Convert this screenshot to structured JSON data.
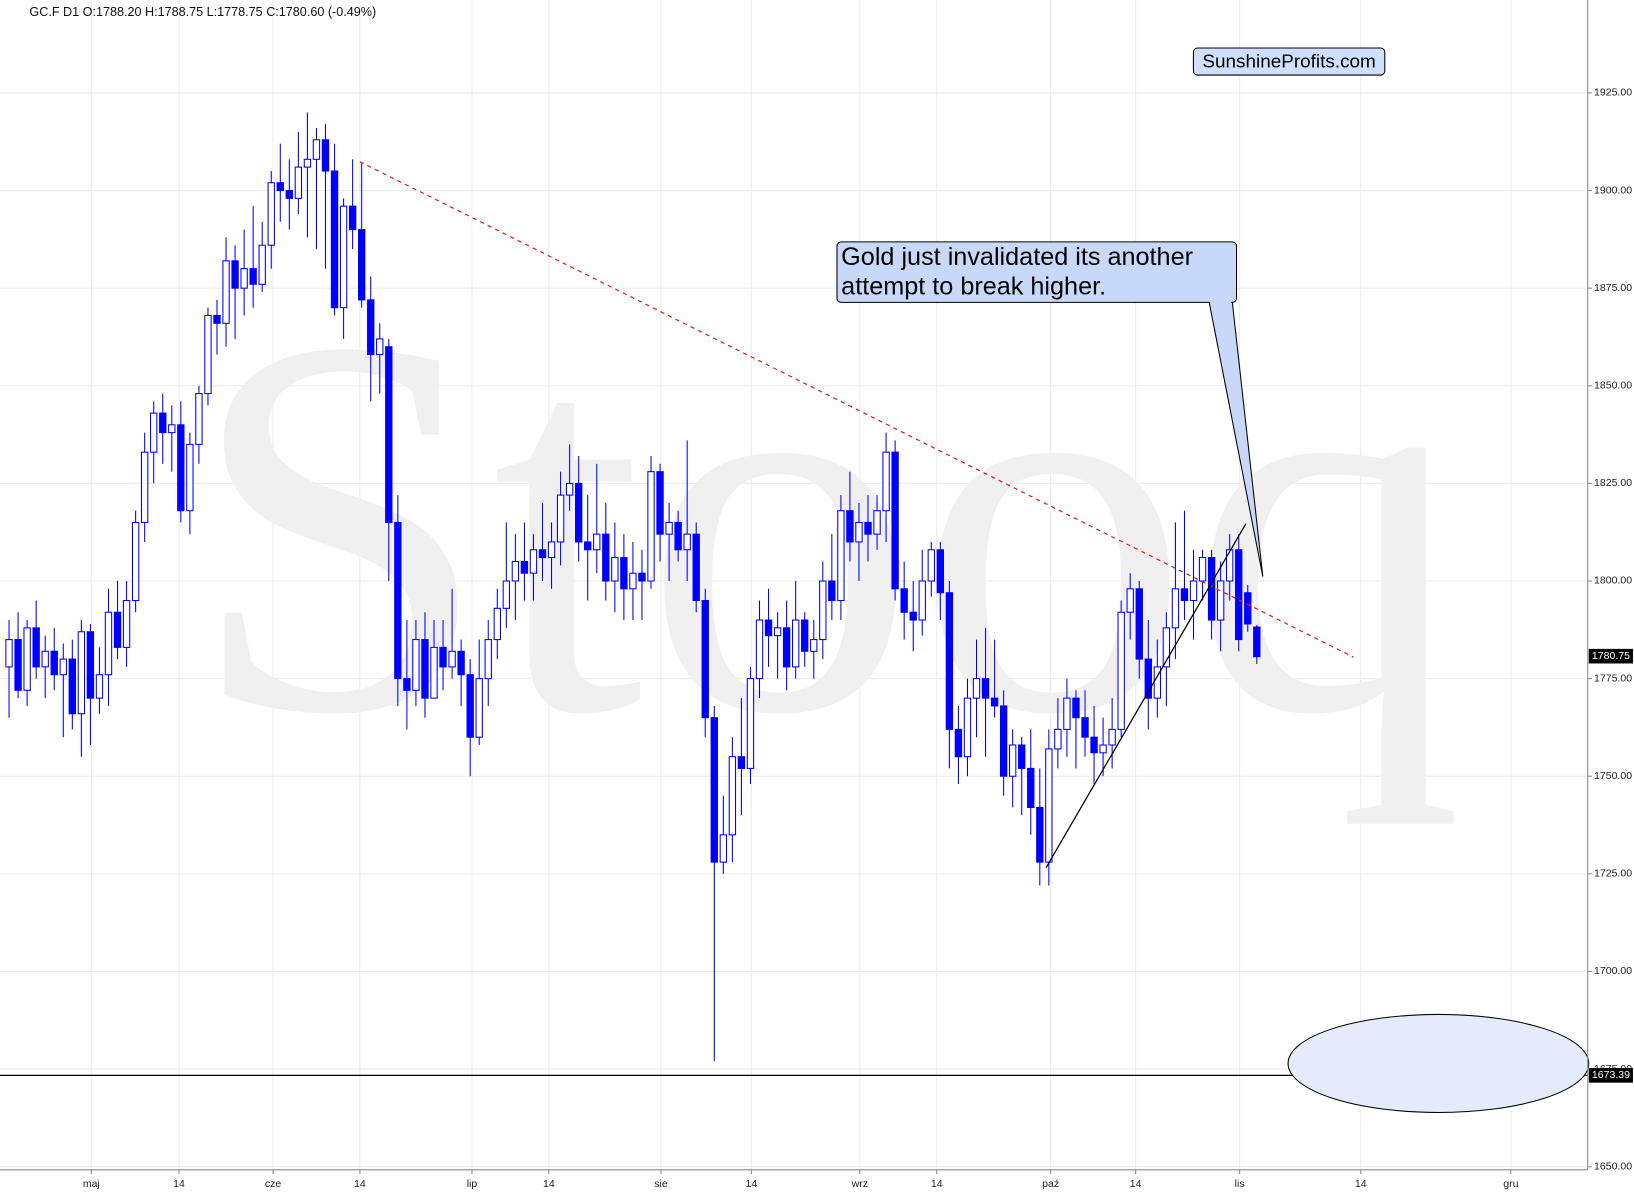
{
  "chart_data": {
    "type": "candlestick",
    "header": "GC.F  D1  O:1788.20  H:1788.75  L:1778.75  C:1780.60  (-0.49%)",
    "watermark": "Stooq",
    "brand": "SunshineProfits.com",
    "annotation": [
      "Gold just invalidated its another",
      "attempt to break higher."
    ],
    "color": "#0000ff",
    "grid": true,
    "ylim": [
      1649.2,
      1948.8
    ],
    "yticks": [
      {
        "value": 1650,
        "label": "1650.00"
      },
      {
        "value": 1675,
        "label": "1675.00"
      },
      {
        "value": 1700,
        "label": "1700.00"
      },
      {
        "value": 1725,
        "label": "1725.00"
      },
      {
        "value": 1750,
        "label": "1750.00"
      },
      {
        "value": 1775,
        "label": "1775.00"
      },
      {
        "value": 1800,
        "label": "1800.00"
      },
      {
        "value": 1825,
        "label": "1825.00"
      },
      {
        "value": 1850,
        "label": "1850.00"
      },
      {
        "value": 1875,
        "label": "1875.00"
      },
      {
        "value": 1900,
        "label": "1900.00"
      },
      {
        "value": 1925,
        "label": "1925.00"
      }
    ],
    "xlim": [
      -1,
      174.6
    ],
    "xticks": [
      {
        "value": 9.1,
        "label": "maj"
      },
      {
        "value": 18.8,
        "label": "14"
      },
      {
        "value": 29.2,
        "label": "cze"
      },
      {
        "value": 38.8,
        "label": "14"
      },
      {
        "value": 51.2,
        "label": "lip"
      },
      {
        "value": 59.7,
        "label": "14"
      },
      {
        "value": 72.1,
        "label": "sie"
      },
      {
        "value": 82.1,
        "label": "14"
      },
      {
        "value": 94.1,
        "label": "wrz"
      },
      {
        "value": 102.6,
        "label": "14"
      },
      {
        "value": 115.2,
        "label": "paź"
      },
      {
        "value": 124.6,
        "label": "14"
      },
      {
        "value": 136.1,
        "label": "lis"
      },
      {
        "value": 149.5,
        "label": "14"
      },
      {
        "value": 166.1,
        "label": "gru"
      }
    ],
    "last_price": {
      "value": 1780.75,
      "label": "1780.75"
    },
    "level": {
      "value": 1673.39,
      "label": "1673.39"
    },
    "trendlines": [
      {
        "color": "#e02020",
        "dashed": true,
        "x": [
          38.8,
          148.7
        ],
        "y": [
          1907.4,
          1780.5
        ]
      },
      {
        "color": "#000000",
        "dashed": false,
        "x": [
          114.7,
          136.8
        ],
        "y": [
          1726.6,
          1814.7
        ]
      }
    ],
    "ohlc": [
      [
        1778,
        1790,
        1765,
        1785
      ],
      [
        1785,
        1792,
        1770,
        1772
      ],
      [
        1772,
        1790,
        1768,
        1788
      ],
      [
        1788,
        1795,
        1775,
        1778
      ],
      [
        1778,
        1786,
        1770,
        1782
      ],
      [
        1782,
        1788,
        1772,
        1776
      ],
      [
        1776,
        1784,
        1760,
        1780
      ],
      [
        1780,
        1785,
        1762,
        1766
      ],
      [
        1766,
        1790,
        1755,
        1787
      ],
      [
        1787,
        1789,
        1758,
        1770
      ],
      [
        1770,
        1783,
        1766,
        1776
      ],
      [
        1776,
        1798,
        1768,
        1792
      ],
      [
        1792,
        1800,
        1780,
        1783
      ],
      [
        1783,
        1800,
        1778,
        1795
      ],
      [
        1795,
        1818,
        1792,
        1815
      ],
      [
        1815,
        1838,
        1810,
        1833
      ],
      [
        1833,
        1846,
        1825,
        1843
      ],
      [
        1843,
        1848,
        1830,
        1838
      ],
      [
        1838,
        1845,
        1828,
        1840
      ],
      [
        1840,
        1846,
        1815,
        1818
      ],
      [
        1818,
        1838,
        1812,
        1835
      ],
      [
        1835,
        1850,
        1830,
        1848
      ],
      [
        1848,
        1870,
        1845,
        1868
      ],
      [
        1868,
        1872,
        1858,
        1866
      ],
      [
        1866,
        1888,
        1860,
        1882
      ],
      [
        1882,
        1886,
        1862,
        1875
      ],
      [
        1875,
        1890,
        1868,
        1880
      ],
      [
        1880,
        1896,
        1870,
        1876
      ],
      [
        1876,
        1892,
        1874,
        1886
      ],
      [
        1886,
        1905,
        1880,
        1902
      ],
      [
        1902,
        1912,
        1892,
        1900
      ],
      [
        1900,
        1908,
        1890,
        1898
      ],
      [
        1898,
        1915,
        1894,
        1906
      ],
      [
        1906,
        1920,
        1888,
        1908
      ],
      [
        1908,
        1916,
        1885,
        1913
      ],
      [
        1913,
        1917,
        1880,
        1905
      ],
      [
        1905,
        1912,
        1868,
        1870
      ],
      [
        1870,
        1898,
        1862,
        1896
      ],
      [
        1896,
        1908,
        1885,
        1890
      ],
      [
        1890,
        1907,
        1870,
        1872
      ],
      [
        1872,
        1878,
        1846,
        1858
      ],
      [
        1858,
        1866,
        1848,
        1862
      ],
      [
        1860,
        1862,
        1800,
        1815
      ],
      [
        1815,
        1822,
        1768,
        1775
      ],
      [
        1775,
        1790,
        1762,
        1772
      ],
      [
        1772,
        1790,
        1768,
        1785
      ],
      [
        1785,
        1792,
        1765,
        1770
      ],
      [
        1770,
        1790,
        1770,
        1783
      ],
      [
        1783,
        1790,
        1772,
        1778
      ],
      [
        1778,
        1798,
        1775,
        1782
      ],
      [
        1782,
        1785,
        1768,
        1776
      ],
      [
        1776,
        1780,
        1750,
        1760
      ],
      [
        1760,
        1785,
        1758,
        1775
      ],
      [
        1775,
        1790,
        1768,
        1785
      ],
      [
        1785,
        1798,
        1780,
        1793
      ],
      [
        1793,
        1815,
        1788,
        1800
      ],
      [
        1800,
        1812,
        1790,
        1805
      ],
      [
        1805,
        1815,
        1795,
        1802
      ],
      [
        1802,
        1812,
        1795,
        1808
      ],
      [
        1808,
        1820,
        1800,
        1806
      ],
      [
        1806,
        1815,
        1798,
        1810
      ],
      [
        1810,
        1828,
        1804,
        1822
      ],
      [
        1822,
        1835,
        1818,
        1825
      ],
      [
        1825,
        1832,
        1805,
        1810
      ],
      [
        1810,
        1822,
        1795,
        1808
      ],
      [
        1808,
        1830,
        1802,
        1812
      ],
      [
        1812,
        1820,
        1795,
        1800
      ],
      [
        1800,
        1815,
        1792,
        1806
      ],
      [
        1806,
        1812,
        1790,
        1798
      ],
      [
        1798,
        1810,
        1790,
        1802
      ],
      [
        1802,
        1808,
        1790,
        1800
      ],
      [
        1800,
        1832,
        1798,
        1828
      ],
      [
        1828,
        1830,
        1805,
        1812
      ],
      [
        1812,
        1820,
        1800,
        1815
      ],
      [
        1815,
        1818,
        1805,
        1808
      ],
      [
        1808,
        1836,
        1800,
        1812
      ],
      [
        1812,
        1815,
        1792,
        1795
      ],
      [
        1795,
        1798,
        1760,
        1765
      ],
      [
        1765,
        1768,
        1677,
        1728
      ],
      [
        1728,
        1745,
        1725,
        1735
      ],
      [
        1735,
        1760,
        1728,
        1755
      ],
      [
        1755,
        1770,
        1740,
        1752
      ],
      [
        1752,
        1778,
        1748,
        1775
      ],
      [
        1775,
        1795,
        1770,
        1790
      ],
      [
        1790,
        1798,
        1778,
        1786
      ],
      [
        1786,
        1792,
        1775,
        1788
      ],
      [
        1788,
        1795,
        1772,
        1778
      ],
      [
        1778,
        1800,
        1775,
        1790
      ],
      [
        1790,
        1792,
        1778,
        1782
      ],
      [
        1782,
        1790,
        1775,
        1785
      ],
      [
        1785,
        1805,
        1780,
        1800
      ],
      [
        1800,
        1812,
        1790,
        1795
      ],
      [
        1795,
        1822,
        1790,
        1818
      ],
      [
        1818,
        1828,
        1805,
        1810
      ],
      [
        1810,
        1820,
        1800,
        1815
      ],
      [
        1815,
        1822,
        1805,
        1812
      ],
      [
        1812,
        1822,
        1808,
        1818
      ],
      [
        1818,
        1838,
        1810,
        1833
      ],
      [
        1833,
        1836,
        1795,
        1798
      ],
      [
        1798,
        1805,
        1785,
        1792
      ],
      [
        1792,
        1800,
        1782,
        1790
      ],
      [
        1790,
        1808,
        1786,
        1800
      ],
      [
        1800,
        1810,
        1796,
        1808
      ],
      [
        1808,
        1810,
        1790,
        1797
      ],
      [
        1797,
        1800,
        1752,
        1762
      ],
      [
        1762,
        1768,
        1748,
        1755
      ],
      [
        1755,
        1775,
        1750,
        1770
      ],
      [
        1770,
        1785,
        1760,
        1775
      ],
      [
        1775,
        1788,
        1755,
        1770
      ],
      [
        1770,
        1785,
        1765,
        1768
      ],
      [
        1768,
        1772,
        1745,
        1750
      ],
      [
        1750,
        1762,
        1742,
        1758
      ],
      [
        1758,
        1760,
        1740,
        1752
      ],
      [
        1752,
        1762,
        1735,
        1742
      ],
      [
        1742,
        1752,
        1722,
        1728
      ],
      [
        1728,
        1762,
        1722,
        1757
      ],
      [
        1757,
        1770,
        1752,
        1762
      ],
      [
        1762,
        1775,
        1755,
        1770
      ],
      [
        1770,
        1772,
        1752,
        1765
      ],
      [
        1765,
        1772,
        1755,
        1760
      ],
      [
        1760,
        1768,
        1748,
        1756
      ],
      [
        1756,
        1765,
        1750,
        1758
      ],
      [
        1758,
        1770,
        1752,
        1762
      ],
      [
        1762,
        1795,
        1760,
        1792
      ],
      [
        1792,
        1802,
        1785,
        1798
      ],
      [
        1798,
        1800,
        1775,
        1780
      ],
      [
        1780,
        1790,
        1762,
        1770
      ],
      [
        1770,
        1785,
        1765,
        1778
      ],
      [
        1778,
        1792,
        1768,
        1788
      ],
      [
        1788,
        1815,
        1780,
        1798
      ],
      [
        1798,
        1818,
        1790,
        1795
      ],
      [
        1795,
        1808,
        1785,
        1800
      ],
      [
        1800,
        1808,
        1795,
        1806
      ],
      [
        1806,
        1808,
        1785,
        1790
      ],
      [
        1790,
        1805,
        1782,
        1800
      ],
      [
        1800,
        1812,
        1795,
        1808
      ],
      [
        1808,
        1812,
        1782,
        1785
      ],
      [
        1797,
        1799,
        1787,
        1789
      ],
      [
        1788.2,
        1788.75,
        1778.75,
        1780.6
      ]
    ]
  }
}
